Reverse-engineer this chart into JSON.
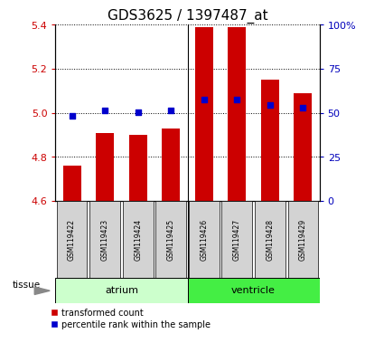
{
  "title": "GDS3625 / 1397487_at",
  "samples": [
    "GSM119422",
    "GSM119423",
    "GSM119424",
    "GSM119425",
    "GSM119426",
    "GSM119427",
    "GSM119428",
    "GSM119429"
  ],
  "red_values": [
    4.76,
    4.91,
    4.9,
    4.93,
    5.39,
    5.39,
    5.15,
    5.09
  ],
  "blue_values": [
    4.985,
    5.01,
    5.005,
    5.01,
    5.06,
    5.06,
    5.035,
    5.025
  ],
  "ylim_left": [
    4.6,
    5.4
  ],
  "ylim_right": [
    0,
    100
  ],
  "yticks_left": [
    4.6,
    4.8,
    5.0,
    5.2,
    5.4
  ],
  "yticks_right": [
    0,
    25,
    50,
    75,
    100
  ],
  "ytick_right_labels": [
    "0",
    "25",
    "50",
    "75",
    "100%"
  ],
  "bar_color": "#cc0000",
  "dot_color": "#0000cc",
  "bar_bottom": 4.6,
  "tissue_label": "tissue",
  "atrium_color": "#ccffcc",
  "ventricle_color": "#44ee44",
  "sample_box_color": "#d3d3d3",
  "legend_red": "transformed count",
  "legend_blue": "percentile rank within the sample",
  "title_fontsize": 11,
  "left_tick_color": "#cc0000",
  "right_tick_color": "#0000bb",
  "n_atrium": 4,
  "n_ventricle": 4
}
